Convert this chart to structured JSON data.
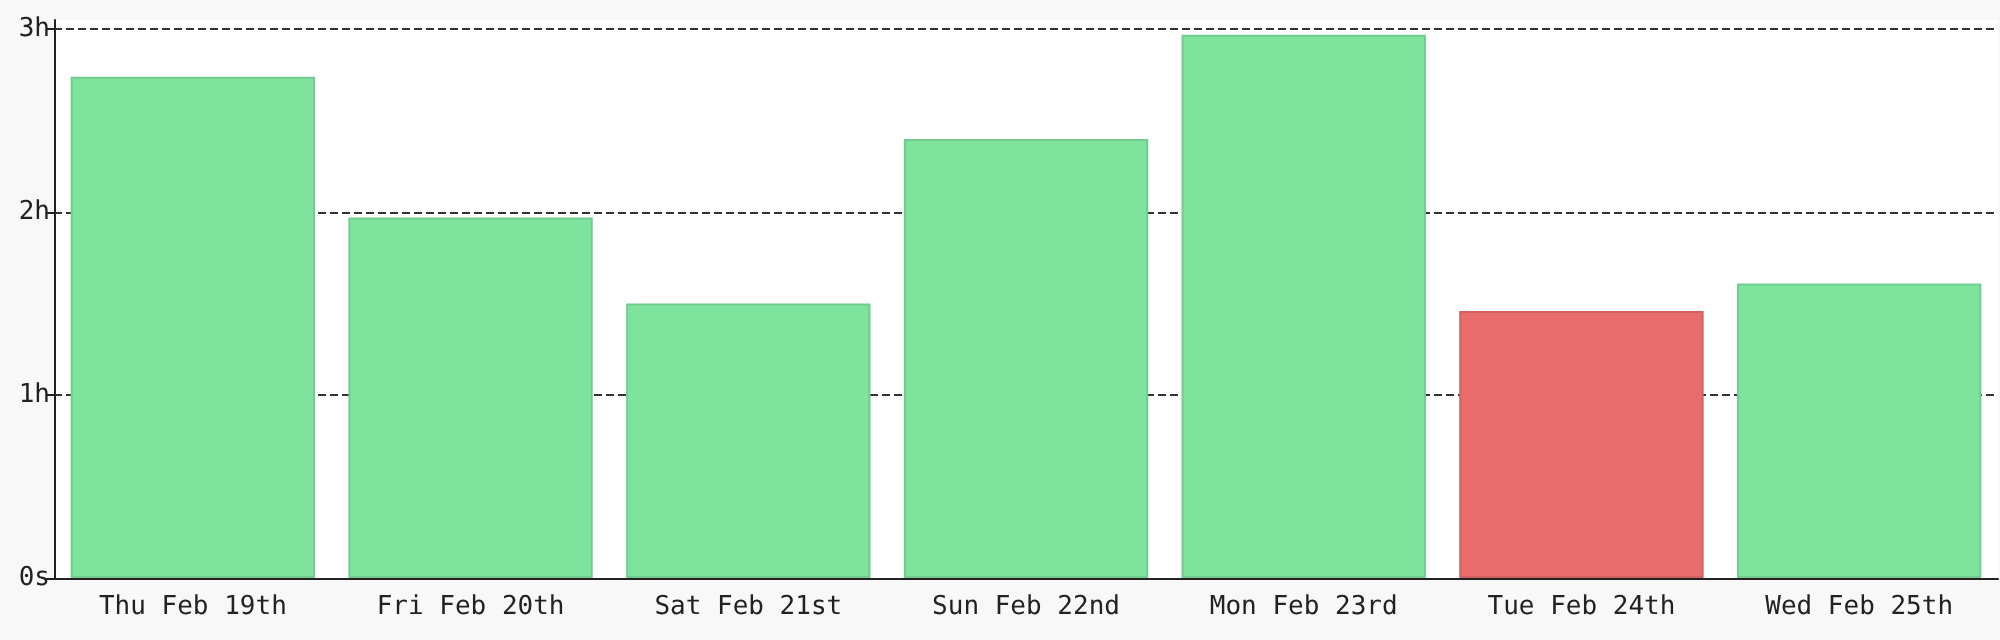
{
  "chart_data": {
    "type": "bar",
    "categories": [
      "Thu Feb 19th",
      "Fri Feb 20th",
      "Sat Feb 21st",
      "Sun Feb 22nd",
      "Mon Feb 23rd",
      "Tue Feb 24th",
      "Wed Feb 25th"
    ],
    "values": [
      2.74,
      1.97,
      1.5,
      2.4,
      2.97,
      1.46,
      1.61
    ],
    "colors": [
      "#7ee39d",
      "#7ee39d",
      "#7ee39d",
      "#7ee39d",
      "#7ee39d",
      "#e96c6c",
      "#7ee39d"
    ],
    "ylim": [
      0,
      3.05
    ],
    "yticks": [
      {
        "value": 0,
        "label": "0s"
      },
      {
        "value": 1,
        "label": "1h"
      },
      {
        "value": 2,
        "label": "2h"
      },
      {
        "value": 3,
        "label": "3h"
      }
    ],
    "grid": "y"
  }
}
